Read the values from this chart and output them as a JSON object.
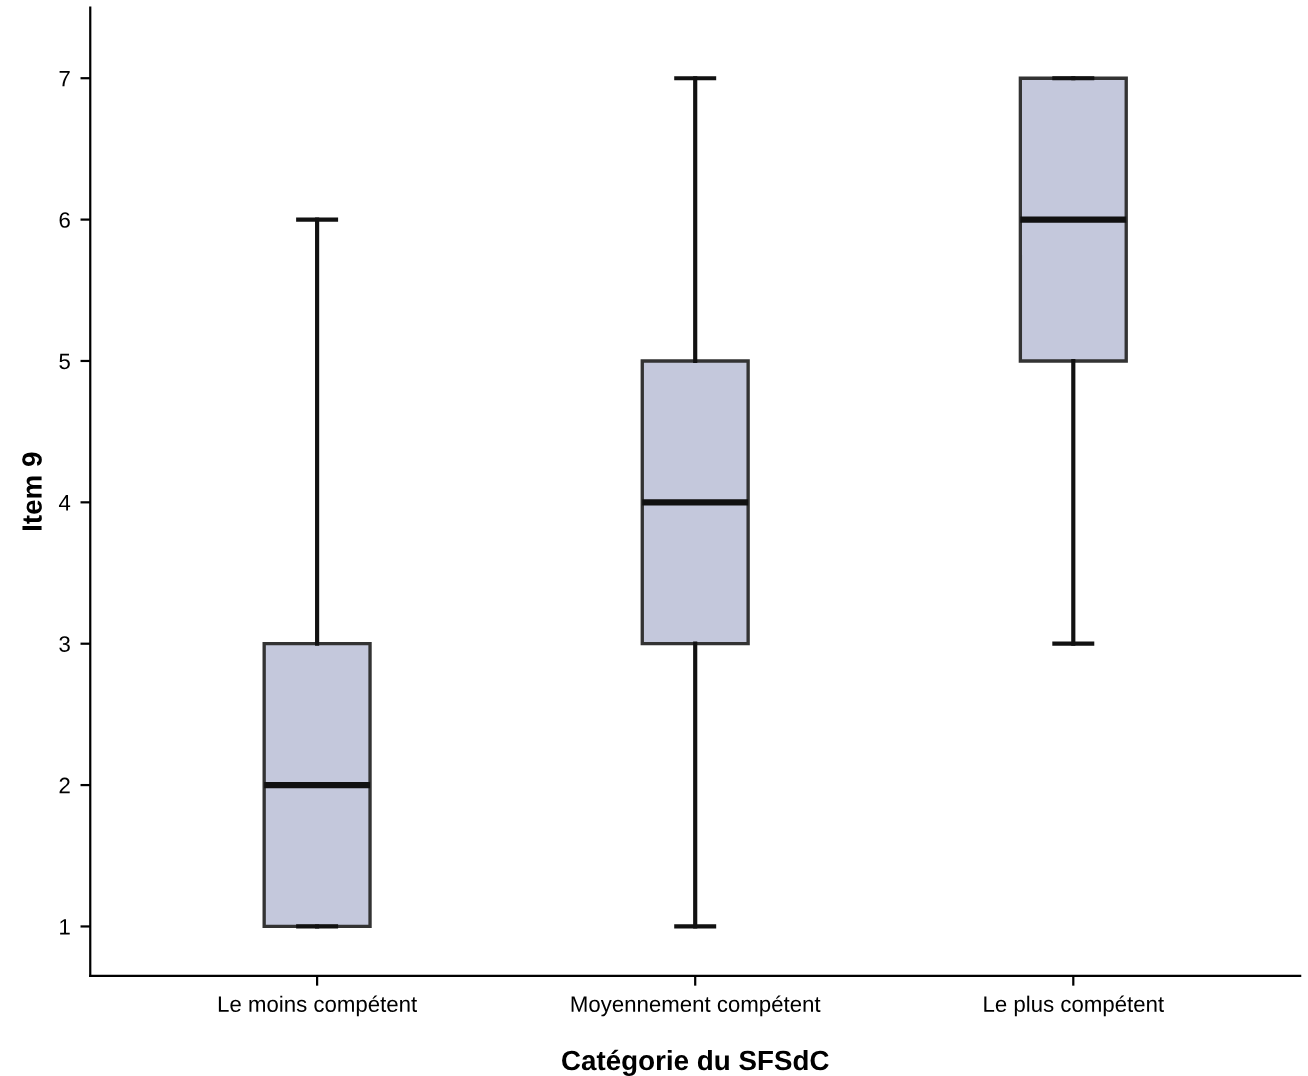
{
  "chart_data": {
    "type": "box",
    "xlabel": "Catégorie du SFSdC",
    "ylabel": "Item 9",
    "categories": [
      "Le moins compétent",
      "Moyennement compétent",
      "Le plus compétent"
    ],
    "boxes": [
      {
        "low": 1,
        "q1": 1,
        "median": 2,
        "q3": 3,
        "high": 6
      },
      {
        "low": 1,
        "q1": 3,
        "median": 4,
        "q3": 5,
        "high": 7
      },
      {
        "low": 3,
        "q1": 5,
        "median": 6,
        "q3": 7,
        "high": 7
      }
    ],
    "color": "#c4c8dc",
    "ylim": [
      0.65,
      7.5
    ],
    "yticks": [
      1,
      2,
      3,
      4,
      5,
      6,
      7
    ],
    "grid": false
  }
}
